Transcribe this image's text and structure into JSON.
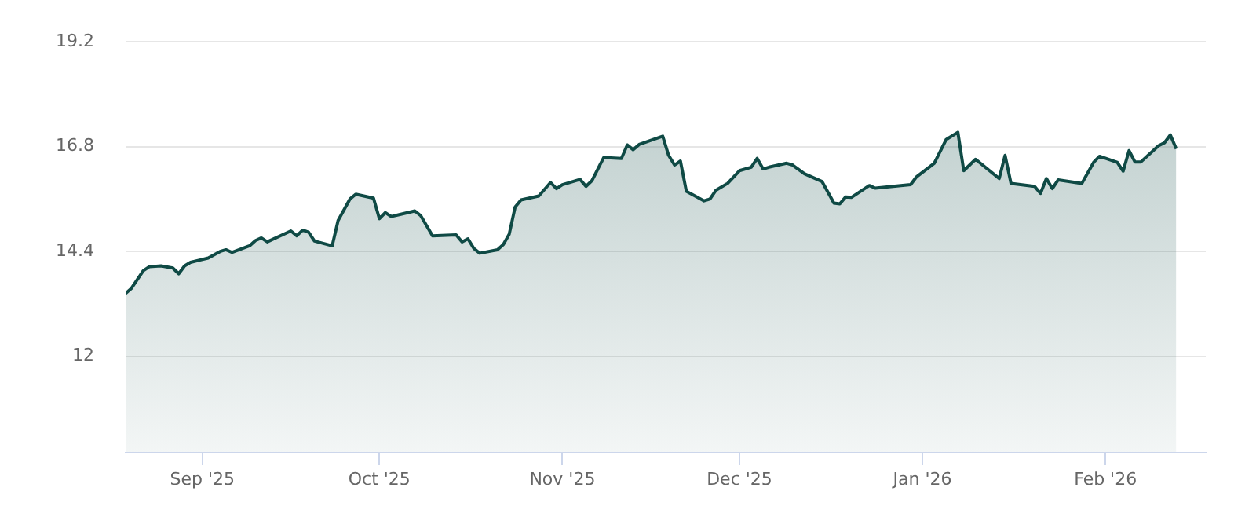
{
  "chart_data": {
    "type": "area",
    "color": "#0f4a45",
    "marker": "none",
    "line_style": "solid",
    "grid": "y",
    "legend": false,
    "xlim": [
      "2025-08-19",
      "2026-02-18"
    ],
    "xticks": [
      {
        "value": "2025-09-01",
        "label": "Sep '25"
      },
      {
        "value": "2025-10-01",
        "label": "Oct '25"
      },
      {
        "value": "2025-11-01",
        "label": "Nov '25"
      },
      {
        "value": "2025-12-01",
        "label": "Dec '25"
      },
      {
        "value": "2026-01-01",
        "label": "Jan '26"
      },
      {
        "value": "2026-02-01",
        "label": "Feb '26"
      }
    ],
    "ylim": [
      9.8,
      19.2
    ],
    "yticks": [
      12,
      14.4,
      16.8,
      19.2
    ],
    "x": [
      "2025-08-19",
      "2025-08-20",
      "2025-08-22",
      "2025-08-23",
      "2025-08-25",
      "2025-08-27",
      "2025-08-28",
      "2025-08-29",
      "2025-08-30",
      "2025-09-02",
      "2025-09-04",
      "2025-09-05",
      "2025-09-06",
      "2025-09-09",
      "2025-09-10",
      "2025-09-11",
      "2025-09-12",
      "2025-09-16",
      "2025-09-17",
      "2025-09-18",
      "2025-09-19",
      "2025-09-20",
      "2025-09-23",
      "2025-09-24",
      "2025-09-26",
      "2025-09-27",
      "2025-09-30",
      "2025-10-01",
      "2025-10-02",
      "2025-10-03",
      "2025-10-07",
      "2025-10-08",
      "2025-10-10",
      "2025-10-14",
      "2025-10-15",
      "2025-10-16",
      "2025-10-17",
      "2025-10-18",
      "2025-10-21",
      "2025-10-22",
      "2025-10-23",
      "2025-10-24",
      "2025-10-25",
      "2025-10-28",
      "2025-10-30",
      "2025-10-31",
      "2025-11-01",
      "2025-11-04",
      "2025-11-05",
      "2025-11-06",
      "2025-11-08",
      "2025-11-11",
      "2025-11-12",
      "2025-11-13",
      "2025-11-14",
      "2025-11-18",
      "2025-11-19",
      "2025-11-20",
      "2025-11-21",
      "2025-11-22",
      "2025-11-25",
      "2025-11-26",
      "2025-11-27",
      "2025-11-29",
      "2025-12-01",
      "2025-12-03",
      "2025-12-04",
      "2025-12-05",
      "2025-12-06",
      "2025-12-09",
      "2025-12-10",
      "2025-12-12",
      "2025-12-15",
      "2025-12-17",
      "2025-12-18",
      "2025-12-19",
      "2025-12-20",
      "2025-12-23",
      "2025-12-24",
      "2025-12-30",
      "2025-12-31",
      "2026-01-03",
      "2026-01-05",
      "2026-01-07",
      "2026-01-08",
      "2026-01-10",
      "2026-01-12",
      "2026-01-14",
      "2026-01-15",
      "2026-01-16",
      "2026-01-20",
      "2026-01-21",
      "2026-01-22",
      "2026-01-23",
      "2026-01-24",
      "2026-01-28",
      "2026-01-30",
      "2026-01-31",
      "2026-02-03",
      "2026-02-04",
      "2026-02-05",
      "2026-02-06",
      "2026-02-07",
      "2026-02-10",
      "2026-02-11",
      "2026-02-12",
      "2026-02-13"
    ],
    "values": [
      13.44,
      13.56,
      13.96,
      14.05,
      14.07,
      14.02,
      13.89,
      14.07,
      14.15,
      14.25,
      14.4,
      14.44,
      14.38,
      14.53,
      14.65,
      14.71,
      14.62,
      14.87,
      14.76,
      14.89,
      14.84,
      14.64,
      14.53,
      15.11,
      15.6,
      15.71,
      15.62,
      15.15,
      15.29,
      15.2,
      15.33,
      15.22,
      14.76,
      14.78,
      14.62,
      14.69,
      14.47,
      14.36,
      14.44,
      14.56,
      14.8,
      15.42,
      15.58,
      15.67,
      15.98,
      15.84,
      15.93,
      16.05,
      15.89,
      16.02,
      16.55,
      16.53,
      16.84,
      16.73,
      16.85,
      17.04,
      16.6,
      16.38,
      16.47,
      15.78,
      15.56,
      15.6,
      15.8,
      15.96,
      16.25,
      16.33,
      16.53,
      16.29,
      16.33,
      16.42,
      16.38,
      16.18,
      16.0,
      15.51,
      15.49,
      15.65,
      15.64,
      15.91,
      15.85,
      15.93,
      16.11,
      16.42,
      16.96,
      17.13,
      16.25,
      16.51,
      16.29,
      16.07,
      16.6,
      15.96,
      15.89,
      15.73,
      16.07,
      15.84,
      16.04,
      15.96,
      16.44,
      16.58,
      16.44,
      16.24,
      16.71,
      16.45,
      16.45,
      16.82,
      16.89,
      17.07,
      16.75
    ]
  }
}
